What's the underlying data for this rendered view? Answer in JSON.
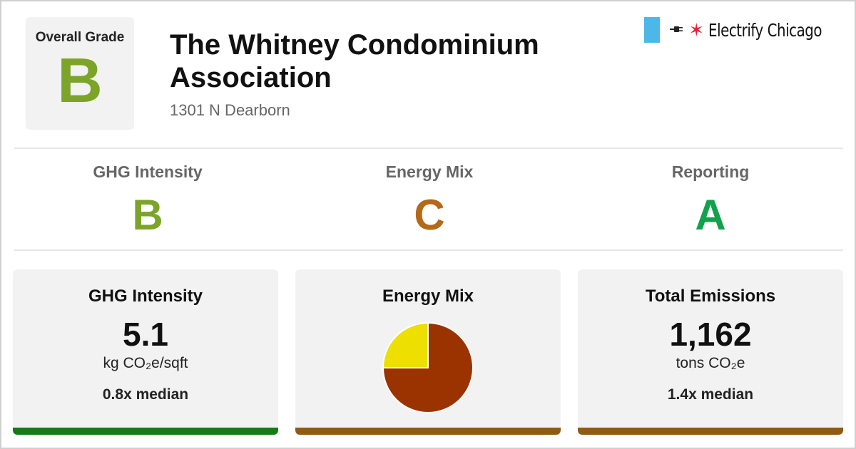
{
  "header": {
    "overall_label": "Overall Grade",
    "overall_grade": "B",
    "overall_color": "#7ba428",
    "building_name": "The Whitney Condominium Association",
    "address": "1301 N Dearborn"
  },
  "logo": {
    "name": "Electrify Chicago",
    "icons": [
      "chicago-flag-stripe",
      "plug-icon",
      "chicago-star-icon"
    ]
  },
  "grades": [
    {
      "label": "GHG Intensity",
      "grade": "B",
      "color": "#7ba428"
    },
    {
      "label": "Energy Mix",
      "grade": "C",
      "color": "#b4681a"
    },
    {
      "label": "Reporting",
      "grade": "A",
      "color": "#10a24c"
    }
  ],
  "cards": {
    "ghg": {
      "title": "GHG Intensity",
      "value": "5.1",
      "unit": "kg CO₂e/sqft",
      "median": "0.8x median",
      "bar_color": "#167a16"
    },
    "mix": {
      "title": "Energy Mix",
      "bar_color": "#8f5a12"
    },
    "total": {
      "title": "Total Emissions",
      "value": "1,162",
      "unit": "tons CO₂e",
      "median": "1.4x median",
      "bar_color": "#8f5a12"
    }
  },
  "chart_data": {
    "type": "pie",
    "slices": [
      {
        "value": 75,
        "color": "#9a3300"
      },
      {
        "value": 25,
        "color": "#ede000"
      }
    ]
  }
}
